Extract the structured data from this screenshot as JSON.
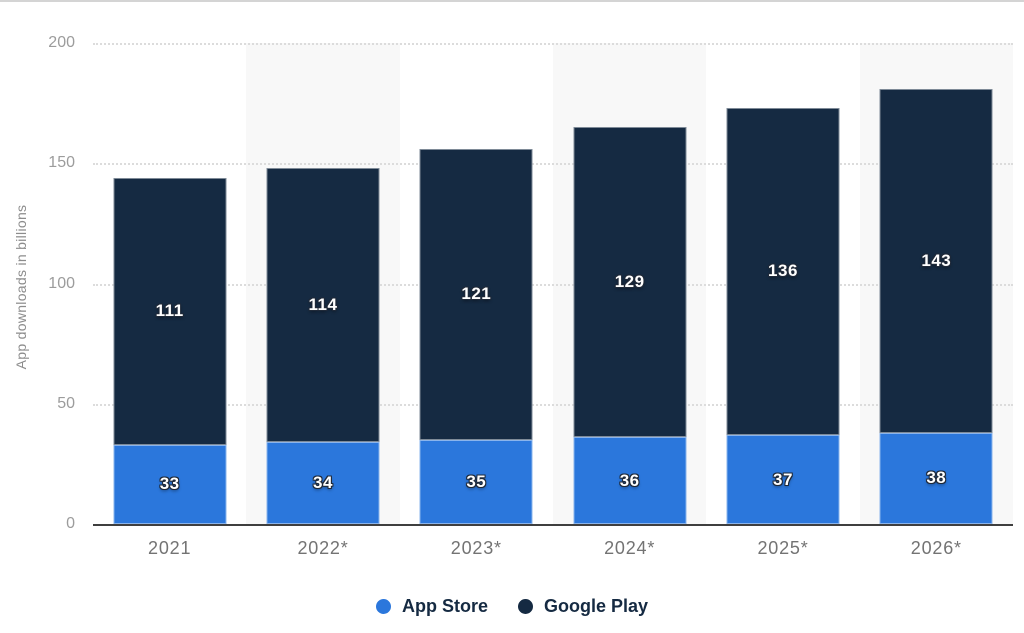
{
  "chart_data": {
    "type": "bar",
    "stacked": true,
    "title": "",
    "categories": [
      "2021",
      "2022*",
      "2023*",
      "2024*",
      "2025*",
      "2026*"
    ],
    "series": [
      {
        "name": "App Store",
        "color": "#2b77dc",
        "values": [
          33,
          34,
          35,
          36,
          37,
          38
        ]
      },
      {
        "name": "Google Play",
        "color": "#152a42",
        "values": [
          111,
          114,
          121,
          129,
          136,
          143
        ]
      }
    ],
    "xlabel": "",
    "ylabel": "App downloads in billions",
    "yticks": [
      0,
      50,
      100,
      150,
      200
    ],
    "ylim": [
      0,
      200
    ],
    "grid": "horizontal-dotted",
    "legend_position": "bottom",
    "plot_band_style": "alternating columns shaded"
  },
  "colors": {
    "plot_band": "#f8f8f8",
    "gridline": "#dcdcdc",
    "axis_line": "#3f3f3f",
    "y_tick_label": "#9c9c9c",
    "x_tick_label": "#737373",
    "axis_title": "#8c8c8c",
    "bar_label": "#ffffff",
    "bar_label_outline": "#1f2938",
    "legend_text": "#152a42",
    "top_divider": "#d4d4d4"
  }
}
